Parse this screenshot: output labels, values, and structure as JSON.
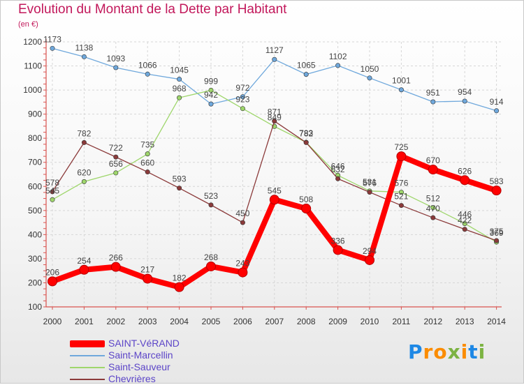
{
  "page": {
    "title": "Evolution du Montant de la Dette par Habitant",
    "unit": "(en €)"
  },
  "logo": {
    "text": "Proxiti",
    "letters": [
      "P",
      "r",
      "o",
      "x",
      "i",
      "t",
      "i"
    ],
    "colors": [
      "#1e88e5",
      "#fb8c00",
      "#fb8c00",
      "#7cb342",
      "#fb8c00",
      "#1e88e5",
      "#7cb342"
    ]
  },
  "chart_data": {
    "type": "line",
    "title": "Evolution du Montant de la Dette par Habitant",
    "ylabel": "(en €)",
    "xlabel": "",
    "x": [
      "2000",
      "2001",
      "2002",
      "2003",
      "2004",
      "2005",
      "2006",
      "2007",
      "2008",
      "2009",
      "2010",
      "2011",
      "2012",
      "2013",
      "2014"
    ],
    "ylim": [
      100,
      1200
    ],
    "yticks": [
      100,
      200,
      300,
      400,
      500,
      600,
      700,
      800,
      900,
      1000,
      1100,
      1200
    ],
    "grid": true,
    "legend_position": "bottom-left",
    "series": [
      {
        "name": "SAINT-VéRAND",
        "color": "#ff0000",
        "emphasis": "thick",
        "values": [
          206,
          254,
          266,
          217,
          182,
          268,
          243,
          545,
          508,
          336,
          294,
          725,
          670,
          626,
          583
        ]
      },
      {
        "name": "Saint-Marcellin",
        "color": "#6fa8dc",
        "emphasis": "normal",
        "values": [
          1173,
          1138,
          1093,
          1066,
          1045,
          942,
          972,
          1127,
          1065,
          1102,
          1050,
          1001,
          951,
          954,
          914
        ]
      },
      {
        "name": "Saint-Sauveur",
        "color": "#9ed66b",
        "emphasis": "normal",
        "values": [
          545,
          620,
          656,
          735,
          968,
          999,
          923,
          849,
          783,
          646,
          581,
          576,
          512,
          446,
          369
        ]
      },
      {
        "name": "Chevrières",
        "color": "#8b3a3a",
        "emphasis": "normal",
        "values": [
          578,
          782,
          722,
          660,
          593,
          523,
          450,
          871,
          782,
          632,
          576,
          521,
          470,
          422,
          375
        ]
      }
    ]
  }
}
